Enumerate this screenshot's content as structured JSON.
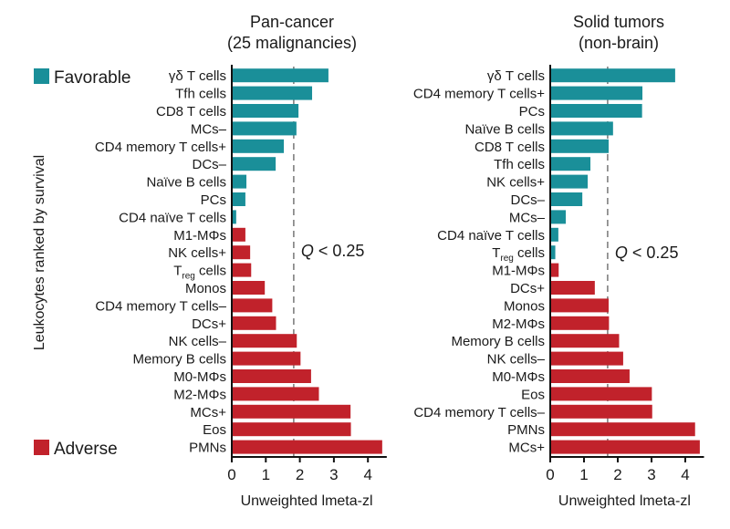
{
  "legend": {
    "favorable": {
      "label": "Favorable",
      "color": "#1a8f99"
    },
    "adverse": {
      "label": "Adverse",
      "color": "#c1222b"
    }
  },
  "ylabel": "Leukocytes ranked by survival",
  "chart_data": [
    {
      "type": "bar",
      "orientation": "horizontal",
      "title": [
        "Pan-cancer",
        "(25 malignancies)"
      ],
      "xlabel": "Unweighted lmeta-zl",
      "xlim": [
        0,
        4.5
      ],
      "xticks": [
        0,
        1,
        2,
        3,
        4
      ],
      "threshold": {
        "value": 1.82,
        "label_prefix": "Q",
        "label_suffix": "< 0.25"
      },
      "categories": [
        "γδ T cells",
        "Tfh cells",
        "CD8 T cells",
        "MCs–",
        "CD4 memory T cells+",
        "DCs–",
        "Naïve B cells",
        "PCs",
        "CD4 naïve T cells",
        "M1-MΦs",
        "NK cells+",
        "Treg cells",
        "Monos",
        "CD4 memory T cells–",
        "DCs+",
        "NK cells–",
        "Memory B cells",
        "M0-MΦs",
        "M2-MΦs",
        "MCs+",
        "Eos",
        "PMNs"
      ],
      "values": [
        2.84,
        2.36,
        1.96,
        1.9,
        1.53,
        1.29,
        0.43,
        0.4,
        0.13,
        0.4,
        0.54,
        0.57,
        0.97,
        1.19,
        1.3,
        1.91,
        2.02,
        2.33,
        2.56,
        3.49,
        3.5,
        4.42
      ],
      "groups": [
        "favorable",
        "favorable",
        "favorable",
        "favorable",
        "favorable",
        "favorable",
        "favorable",
        "favorable",
        "favorable",
        "adverse",
        "adverse",
        "adverse",
        "adverse",
        "adverse",
        "adverse",
        "adverse",
        "adverse",
        "adverse",
        "adverse",
        "adverse",
        "adverse",
        "adverse"
      ]
    },
    {
      "type": "bar",
      "orientation": "horizontal",
      "title": [
        "Solid tumors",
        "(non-brain)"
      ],
      "xlabel": "Unweighted lmeta-zl",
      "xlim": [
        0,
        4.5
      ],
      "xticks": [
        0,
        1,
        2,
        3,
        4
      ],
      "threshold": {
        "value": 1.7,
        "label_prefix": "Q",
        "label_suffix": "< 0.25"
      },
      "categories": [
        "γδ T cells",
        "CD4 memory T cells+",
        "PCs",
        "Naïve B cells",
        "CD8 T cells",
        "Tfh cells",
        "NK cells+",
        "DCs–",
        "MCs–",
        "CD4 naïve T cells",
        "Treg cells",
        "M1-MΦs",
        "DCs+",
        "Monos",
        "M2-MΦs",
        "Memory B cells",
        "NK cells–",
        "M0-MΦs",
        "Eos",
        "CD4 memory T cells–",
        "PMNs",
        "MCs+"
      ],
      "values": [
        3.7,
        2.73,
        2.72,
        1.86,
        1.73,
        1.19,
        1.11,
        0.95,
        0.46,
        0.24,
        0.15,
        0.25,
        1.32,
        1.73,
        1.74,
        2.04,
        2.16,
        2.35,
        3.01,
        3.02,
        4.29,
        4.43
      ],
      "groups": [
        "favorable",
        "favorable",
        "favorable",
        "favorable",
        "favorable",
        "favorable",
        "favorable",
        "favorable",
        "favorable",
        "favorable",
        "favorable",
        "adverse",
        "adverse",
        "adverse",
        "adverse",
        "adverse",
        "adverse",
        "adverse",
        "adverse",
        "adverse",
        "adverse",
        "adverse"
      ]
    }
  ]
}
